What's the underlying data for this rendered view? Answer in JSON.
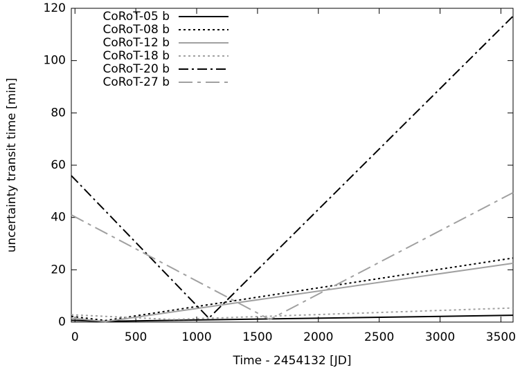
{
  "chart_data": {
    "type": "line",
    "xlabel": "Time - 2454132 [JD]",
    "ylabel": "uncertainty transit time [min]",
    "xlim": [
      -30,
      3600
    ],
    "xticks": [
      0,
      500,
      1000,
      1500,
      2000,
      2500,
      3000,
      3500
    ],
    "ylim": [
      0,
      120
    ],
    "yticks": [
      0,
      20,
      40,
      60,
      80,
      100,
      120
    ],
    "legend": "upper-left",
    "series": [
      {
        "name": "CoRoT-05 b",
        "color": "#000000",
        "dash": "solid",
        "x": [
          -30,
          250,
          3600
        ],
        "values": [
          0.7,
          0.3,
          2.6
        ]
      },
      {
        "name": "CoRoT-08 b",
        "color": "#000000",
        "dash": "dotted",
        "x": [
          -30,
          250,
          3600
        ],
        "values": [
          2.2,
          0.6,
          24.5
        ]
      },
      {
        "name": "CoRoT-12 b",
        "color": "#a0a0a0",
        "dash": "solid",
        "x": [
          -30,
          250,
          3600
        ],
        "values": [
          1.5,
          0.2,
          22.5
        ]
      },
      {
        "name": "CoRoT-18 b",
        "color": "#a0a0a0",
        "dash": "dotted",
        "x": [
          -30,
          800,
          3600
        ],
        "values": [
          2.8,
          1.0,
          5.4
        ]
      },
      {
        "name": "CoRoT-20 b",
        "color": "#000000",
        "dash": "dashdot",
        "x": [
          -30,
          1100,
          3600
        ],
        "values": [
          56,
          1.5,
          117
        ]
      },
      {
        "name": "CoRoT-27 b",
        "color": "#a0a0a0",
        "dash": "longdashdot",
        "x": [
          -30,
          1600,
          3600
        ],
        "values": [
          41,
          1.0,
          49.5
        ]
      }
    ]
  }
}
